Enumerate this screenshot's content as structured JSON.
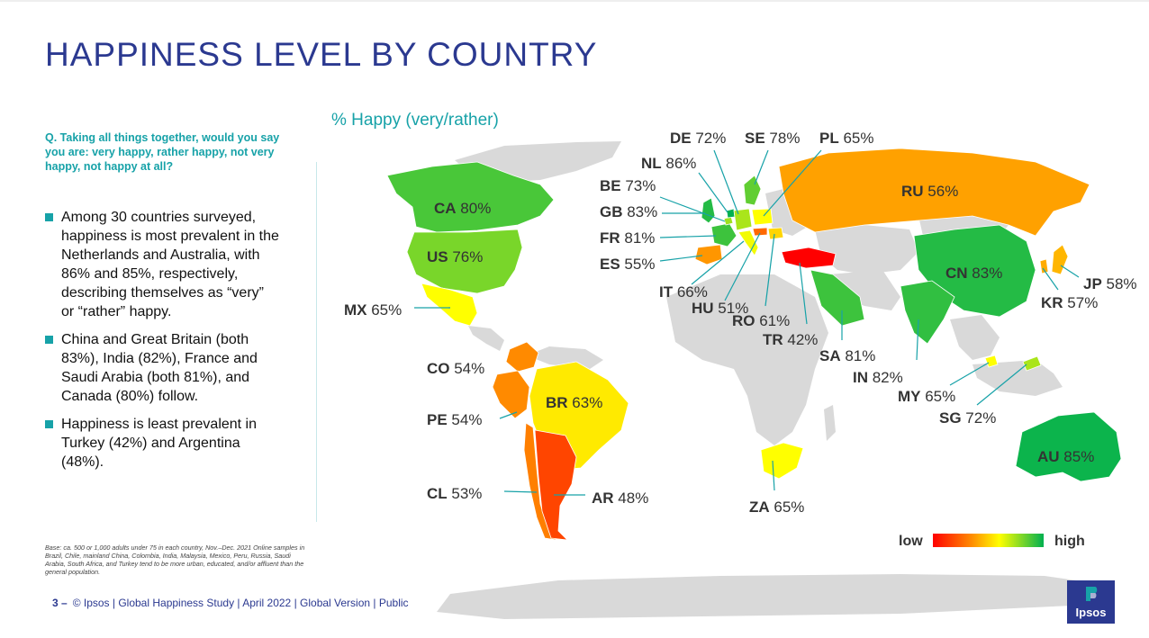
{
  "title": "HAPPINESS LEVEL BY COUNTRY",
  "question": "Q. Taking all things together, would you say you are: very happy, rather happy, not very happy, not happy at all?",
  "bullets": [
    "Among 30 countries surveyed, happiness is most prevalent in the Netherlands and Australia, with 86% and 85%, respectively, describing themselves as “very” or “rather” happy.",
    "China and Great Britain (both 83%), India (82%), France and Saudi Arabia (both 81%), and Canada (80%) follow.",
    "Happiness is least prevalent in Turkey (42%) and Argentina (48%)."
  ],
  "base_note": "Base: ca. 500 or 1,000 adults under 75 in each country, Nov.–Dec. 2021 Online samples in Brazil, Chile, mainland China, Colombia, India, Malaysia, Mexico, Peru, Russia, Saudi Arabia, South Africa, and Turkey tend to be more urban, educated, and/or affluent than the general population.",
  "footer": {
    "page": "3 –",
    "text": "© Ipsos | Global Happiness Study | April 2022 | Global Version | Public"
  },
  "logo": "Ipsos",
  "chart_data": {
    "type": "choropleth-map",
    "title": "% Happy (very/rather)",
    "legend": {
      "low_label": "low",
      "high_label": "high",
      "colors": [
        "#ff0000",
        "#ff8c00",
        "#ffff00",
        "#00b050"
      ]
    },
    "countries": [
      {
        "code": "CA",
        "value": 80
      },
      {
        "code": "US",
        "value": 76
      },
      {
        "code": "MX",
        "value": 65
      },
      {
        "code": "CO",
        "value": 54
      },
      {
        "code": "PE",
        "value": 54
      },
      {
        "code": "BR",
        "value": 63
      },
      {
        "code": "CL",
        "value": 53
      },
      {
        "code": "AR",
        "value": 48
      },
      {
        "code": "DE",
        "value": 72
      },
      {
        "code": "SE",
        "value": 78
      },
      {
        "code": "PL",
        "value": 65
      },
      {
        "code": "NL",
        "value": 86
      },
      {
        "code": "BE",
        "value": 73
      },
      {
        "code": "GB",
        "value": 83
      },
      {
        "code": "FR",
        "value": 81
      },
      {
        "code": "ES",
        "value": 55
      },
      {
        "code": "IT",
        "value": 66
      },
      {
        "code": "HU",
        "value": 51
      },
      {
        "code": "RO",
        "value": 61
      },
      {
        "code": "TR",
        "value": 42
      },
      {
        "code": "RU",
        "value": 56
      },
      {
        "code": "CN",
        "value": 83
      },
      {
        "code": "JP",
        "value": 58
      },
      {
        "code": "KR",
        "value": 57
      },
      {
        "code": "SA",
        "value": 81
      },
      {
        "code": "IN",
        "value": 82
      },
      {
        "code": "MY",
        "value": 65
      },
      {
        "code": "SG",
        "value": 72
      },
      {
        "code": "ZA",
        "value": 65
      },
      {
        "code": "AU",
        "value": 85
      }
    ]
  }
}
